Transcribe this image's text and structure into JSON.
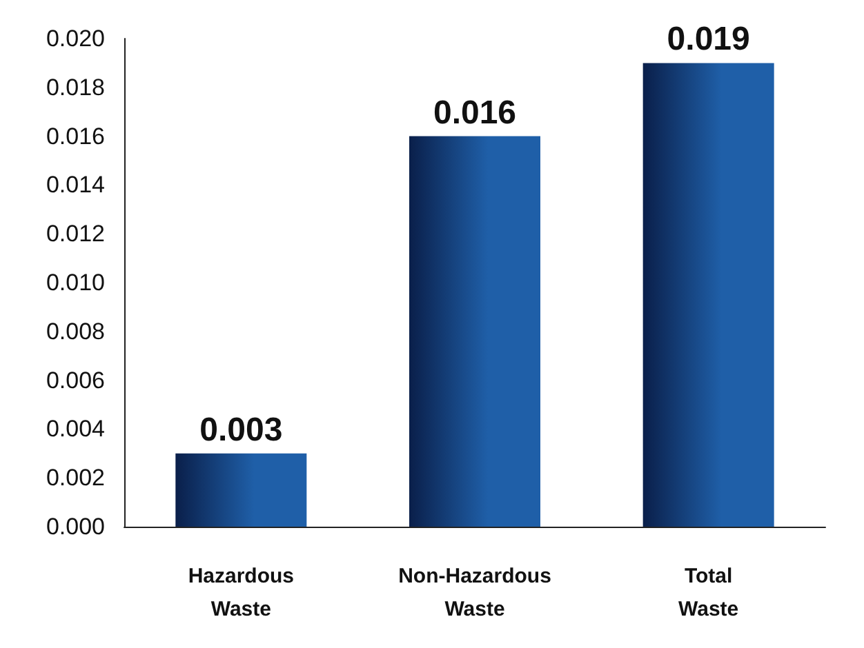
{
  "chart_data": {
    "type": "bar",
    "categories": [
      "Hazardous Waste",
      "Non-Hazardous Waste",
      "Total Waste"
    ],
    "values": [
      0.003,
      0.016,
      0.019
    ],
    "color": "#1f5fa8",
    "data_labels": true,
    "ylim": [
      0,
      0.02
    ],
    "yticks": [
      {
        "value": 0,
        "label": "0.000"
      },
      {
        "value": 0.002,
        "label": "0.002"
      },
      {
        "value": 0.004,
        "label": "0.004"
      },
      {
        "value": 0.006,
        "label": "0.006"
      },
      {
        "value": 0.008,
        "label": "0.008"
      },
      {
        "value": 0.01,
        "label": "0.010"
      },
      {
        "value": 0.012,
        "label": "0.012"
      },
      {
        "value": 0.014,
        "label": "0.014"
      },
      {
        "value": 0.016,
        "label": "0.016"
      },
      {
        "value": 0.018,
        "label": "0.018"
      },
      {
        "value": 0.02,
        "label": "0.020"
      }
    ]
  }
}
